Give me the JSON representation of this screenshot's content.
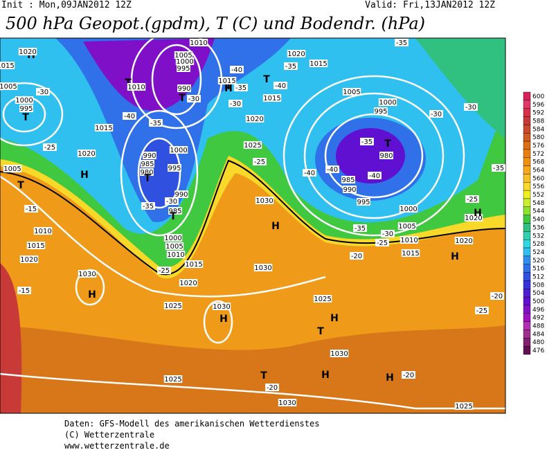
{
  "header": {
    "init": "Init : Mon,09JAN2012 12Z",
    "valid": "Valid: Fri,13JAN2012 12Z",
    "title": "500 hPa Geopot.(gpdm), T (C) und Bodendr. (hPa)"
  },
  "colorbar": {
    "levels": [
      600,
      596,
      592,
      588,
      584,
      580,
      576,
      572,
      568,
      564,
      560,
      556,
      552,
      548,
      544,
      540,
      536,
      532,
      528,
      524,
      520,
      516,
      512,
      508,
      504,
      500,
      496,
      492,
      488,
      484,
      480,
      476
    ],
    "colors": [
      "#d8205a",
      "#e0386a",
      "#d83048",
      "#c83838",
      "#c84830",
      "#d05a20",
      "#dc7010",
      "#e88010",
      "#f09010",
      "#f8a818",
      "#f8c020",
      "#f8d828",
      "#f0f020",
      "#c8f030",
      "#90e030",
      "#40c840",
      "#30c080",
      "#30d0b0",
      "#30d8e0",
      "#30c0f0",
      "#3090f0",
      "#3070e8",
      "#3050e0",
      "#3830d8",
      "#5020d0",
      "#6010d0",
      "#8010c8",
      "#a010c0",
      "#b030b0",
      "#a03090",
      "#802070",
      "#601050"
    ]
  },
  "map_labels": [
    "H",
    "T",
    "995",
    "1000",
    "1005",
    "1020",
    "1015",
    "-30",
    "-25",
    "1015",
    "1020",
    "H",
    "T",
    "1005",
    "-15",
    "1010",
    "1015",
    "1020",
    "-15",
    "1030",
    "H",
    "1025",
    "T",
    "1010",
    "-40",
    "-35",
    "1005",
    "1000",
    "995",
    "990",
    "T",
    "-30",
    "1010",
    "990",
    "985",
    "980",
    "T",
    "995",
    "1000",
    "990",
    "-30",
    "985",
    "T",
    "-35",
    "1000",
    "1005",
    "1010",
    "1015",
    "1020",
    "-25",
    "T",
    "H",
    "1015",
    "-35",
    "-40",
    "-30",
    "1020",
    "1025",
    "-25",
    "T",
    "-35",
    "-40",
    "1015",
    "1015",
    "1020",
    "1030",
    "H",
    "1030",
    "1025",
    "H",
    "T",
    "1030",
    "H",
    "T",
    "-20",
    "1030",
    "1025",
    "1030",
    "H",
    "1005",
    "1000",
    "995",
    "T",
    "980",
    "985",
    "990",
    "995",
    "1000",
    "1005",
    "1010",
    "1015",
    "-35",
    "-40",
    "-40",
    "-40",
    "-35",
    "-30",
    "-25",
    "-20",
    "-30",
    "-35",
    "-30",
    "-35",
    "-25",
    "1020",
    "H",
    "H",
    "1020",
    "-20",
    "H",
    "-25",
    "-20",
    "1025"
  ],
  "footer": [
    "Daten: GFS-Modell des amerikanischen Wetterdienstes",
    "(C) Wetterzentrale",
    "www.wetterzentrale.de"
  ]
}
